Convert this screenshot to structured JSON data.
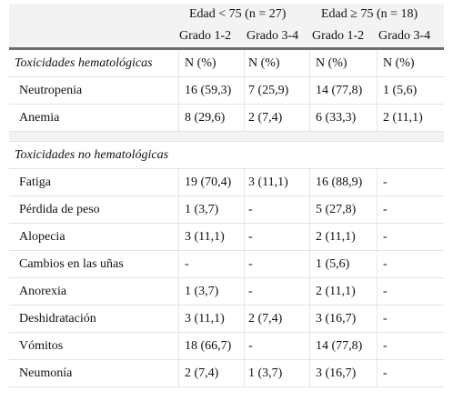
{
  "header": {
    "group_young": "Edad < 75 (n = 27)",
    "group_old": "Edad ≥ 75 (n = 18)",
    "grades": [
      "Grado 1-2",
      "Grado 3-4",
      "Grado 1-2",
      "Grado 3-4"
    ]
  },
  "hematologic": {
    "title": "Toxicidades hematológicas",
    "units": [
      "N (%)",
      "N (%)",
      "N (%)",
      "N (%)"
    ],
    "rows": [
      {
        "label": "Neutropenia",
        "values": [
          "16 (59,3)",
          "7 (25,9)",
          "14 (77,8)",
          "1 (5,6)"
        ]
      },
      {
        "label": "Anemia",
        "values": [
          "8 (29,6)",
          "2 (7,4)",
          "6 (33,3)",
          "2 (11,1)"
        ]
      }
    ]
  },
  "non_hematologic": {
    "title": "Toxicidades no hematológicas",
    "rows": [
      {
        "label": "Fatiga",
        "values": [
          "19 (70,4)",
          "3 (11,1)",
          "16 (88,9)",
          "-"
        ]
      },
      {
        "label": "Pérdida de peso",
        "values": [
          "1 (3,7)",
          "-",
          "5 (27,8)",
          "-"
        ]
      },
      {
        "label": "Alopecia",
        "values": [
          "3 (11,1)",
          "-",
          "2 (11,1)",
          "-"
        ]
      },
      {
        "label": "Cambios en las uñas",
        "values": [
          "-",
          "-",
          "1 (5,6)",
          "-"
        ]
      },
      {
        "label": "Anorexia",
        "values": [
          "1 (3,7)",
          "-",
          "2 (11,1)",
          "-"
        ]
      },
      {
        "label": "Deshidratación",
        "values": [
          "3 (11,1)",
          "2 (7,4)",
          "3 (16,7)",
          "-"
        ]
      },
      {
        "label": "Vómitos",
        "values": [
          "18 (66,7)",
          "-",
          "14 (77,8)",
          "-"
        ]
      },
      {
        "label": "Neumonía",
        "values": [
          "2 (7,4)",
          "1 (3,7)",
          "3 (16,7)",
          "-"
        ]
      }
    ]
  }
}
